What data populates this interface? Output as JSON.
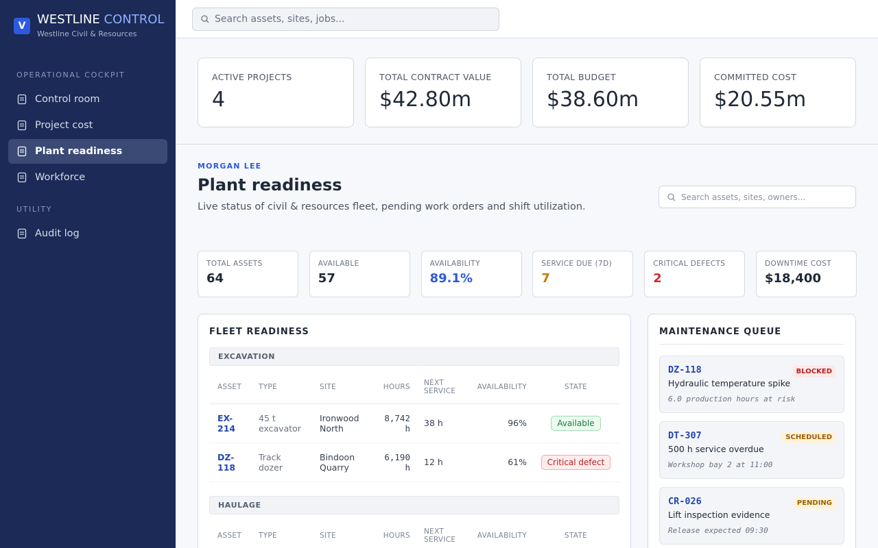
{
  "brand": {
    "logo": "V",
    "name": "WESTLINE",
    "accent": "CONTROL",
    "subtitle": "Westline Civil & Resources"
  },
  "nav": [
    {
      "title": "OPERATIONAL COCKPIT",
      "items": [
        "Control room",
        "Project cost",
        "Plant readiness",
        "Workforce"
      ]
    },
    {
      "title": "UTILITY",
      "items": [
        "Audit log"
      ]
    }
  ],
  "topbar": {
    "search": "Search assets, sites, jobs..."
  },
  "kpis": [
    {
      "label": "ACTIVE PROJECTS",
      "value": "4"
    },
    {
      "label": "TOTAL CONTRACT VALUE",
      "value": "$42.80m"
    },
    {
      "label": "TOTAL BUDGET",
      "value": "$38.60m"
    },
    {
      "label": "COMMITTED COST",
      "value": "$20.55m"
    }
  ],
  "page": {
    "eyebrow": "MORGAN LEE",
    "title": "Plant readiness",
    "description": "Live status of civil & resources fleet, pending work orders and shift utilization.",
    "search": "Search assets, sites, owners..."
  },
  "stats": [
    {
      "label": "TOTAL ASSETS",
      "value": "64"
    },
    {
      "label": "AVAILABLE",
      "value": "57"
    },
    {
      "label": "AVAILABILITY",
      "value": "89.1%"
    },
    {
      "label": "SERVICE DUE (7D)",
      "value": "7"
    },
    {
      "label": "CRITICAL DEFECTS",
      "value": "2"
    },
    {
      "label": "DOWNTIME COST",
      "value": "$18,400"
    }
  ],
  "fleet": {
    "title": "FLEET READINESS",
    "groups": [
      {
        "name": "EXCAVATION",
        "headers": [
          "ASSET",
          "TYPE",
          "SITE",
          "HOURS",
          "NEXT SERVICE",
          "AVAILABILITY",
          "STATE"
        ],
        "rows": [
          [
            "EX-214",
            "45 t excavator",
            "Ironwood North",
            "8,742 h",
            "38 h",
            "96%",
            "Available"
          ],
          [
            "DZ-118",
            "Track dozer",
            "Bindoon Quarry",
            "6,190 h",
            "12 h",
            "61%",
            "Critical defect"
          ]
        ]
      },
      {
        "name": "HAULAGE",
        "headers": [
          "ASSET",
          "TYPE",
          "SITE",
          "HOURS",
          "NEXT SERVICE",
          "AVAILABILITY",
          "STATE"
        ],
        "rows": []
      }
    ]
  },
  "queue": {
    "title": "MAINTENANCE QUEUE",
    "items": [
      {
        "id": "DZ-118",
        "status": "BLOCKED",
        "title": "Hydraulic temperature spike",
        "note": "6.0 production hours at risk"
      },
      {
        "id": "DT-307",
        "status": "SCHEDULED",
        "title": "500 h service overdue",
        "note": "Workshop bay 2 at 11:00"
      },
      {
        "id": "CR-026",
        "status": "PENDING",
        "title": "Lift inspection evidence",
        "note": "Release expected 09:30"
      }
    ]
  }
}
